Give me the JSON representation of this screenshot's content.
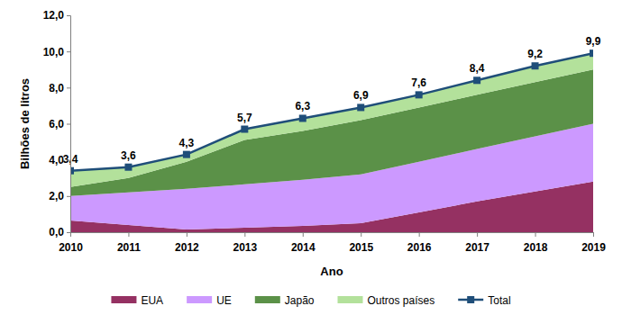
{
  "chart_data": {
    "type": "area",
    "stacked": true,
    "x_label": "Ano",
    "y_label": "Bilhões de litros",
    "x": [
      2010,
      2011,
      2012,
      2013,
      2014,
      2015,
      2016,
      2017,
      2018,
      2019
    ],
    "xlim": [
      2010,
      2019
    ],
    "xticks": [
      2010,
      2011,
      2012,
      2013,
      2014,
      2015,
      2016,
      2017,
      2018,
      2019
    ],
    "ylim": [
      0,
      12
    ],
    "yticks": [
      {
        "value": 0,
        "label": "0,0"
      },
      {
        "value": 2,
        "label": "2,0"
      },
      {
        "value": 4,
        "label": "4,0"
      },
      {
        "value": 6,
        "label": "6,0"
      },
      {
        "value": 8,
        "label": "8,0"
      },
      {
        "value": 10,
        "label": "10,0"
      },
      {
        "value": 12,
        "label": "12,0"
      }
    ],
    "grid": false,
    "legend": "bottom",
    "data_labels": true,
    "series": [
      {
        "name": "EUA",
        "type": "area",
        "color": "#953162",
        "values": [
          0.65,
          0.4,
          0.15,
          0.25,
          0.35,
          0.5,
          1.1,
          1.7,
          2.25,
          2.8
        ]
      },
      {
        "name": "UE",
        "type": "area",
        "color": "#cc99ff",
        "values": [
          1.35,
          1.8,
          2.25,
          2.4,
          2.55,
          2.7,
          2.8,
          2.9,
          3.05,
          3.2
        ]
      },
      {
        "name": "Japão",
        "type": "area",
        "color": "#5b9148",
        "values": [
          0.5,
          0.8,
          1.5,
          2.45,
          2.7,
          3.0,
          3.0,
          3.0,
          3.0,
          3.0
        ]
      },
      {
        "name": "Outros países",
        "type": "area",
        "color": "#b3e19b",
        "values": [
          0.9,
          0.6,
          0.4,
          0.6,
          0.7,
          0.7,
          0.7,
          0.8,
          0.9,
          0.9
        ]
      },
      {
        "name": "Total",
        "type": "line",
        "color": "#1f4e79",
        "marker": "square",
        "line_style": "solid",
        "values": [
          3.4,
          3.6,
          4.3,
          5.7,
          6.3,
          6.9,
          7.6,
          8.4,
          9.2,
          9.9
        ],
        "value_labels": [
          "3,4",
          "3,6",
          "4,3",
          "5,7",
          "6,3",
          "6,9",
          "7,6",
          "8,4",
          "9,2",
          "9,9"
        ]
      }
    ]
  }
}
